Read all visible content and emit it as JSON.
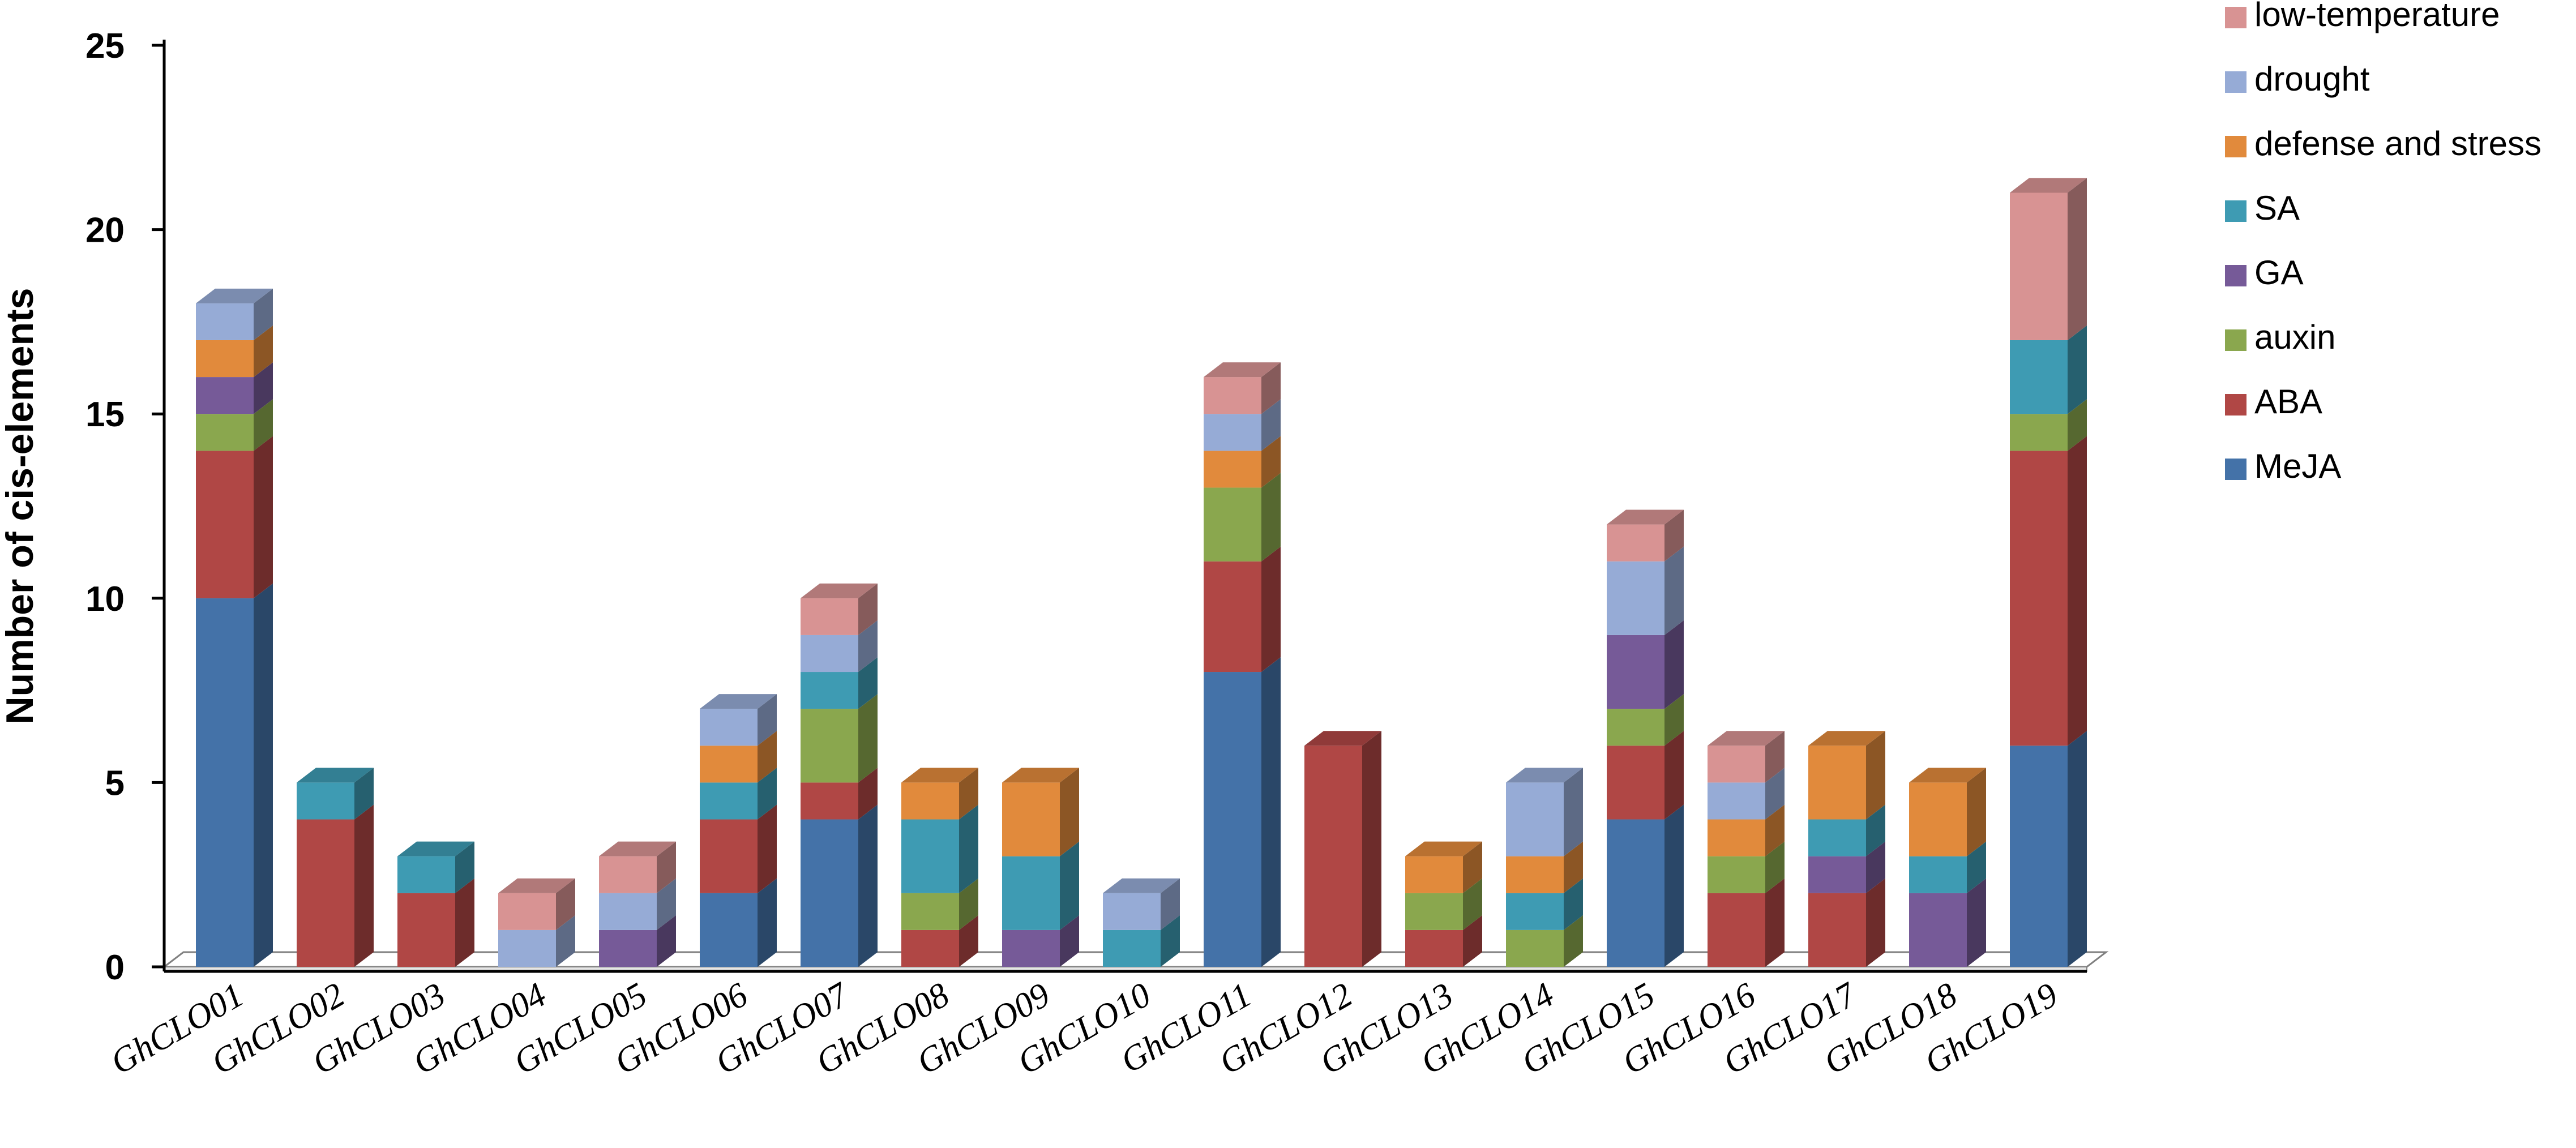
{
  "chart_data": {
    "type": "bar",
    "stacked": true,
    "three_d": true,
    "ylabel": "Number of cis-elements",
    "xlabel": "",
    "ylim": [
      0,
      25
    ],
    "yticks": [
      "0",
      "5",
      "10",
      "15",
      "20",
      "25"
    ],
    "grid": false,
    "legend_position": "top-right",
    "categories": [
      "GhCLO01",
      "GhCLO02",
      "GhCLO03",
      "GhCLO04",
      "GhCLO05",
      "GhCLO06",
      "GhCLO07",
      "GhCLO08",
      "GhCLO09",
      "GhCLO10",
      "GhCLO11",
      "GhCLO12",
      "GhCLO13",
      "GhCLO14",
      "GhCLO15",
      "GhCLO16",
      "GhCLO17",
      "GhCLO18",
      "GhCLO19"
    ],
    "series": [
      {
        "name": "MeJA",
        "color": "#4472a8",
        "values": [
          10,
          0,
          0,
          0,
          0,
          2,
          4,
          0,
          0,
          0,
          8,
          0,
          0,
          0,
          4,
          0,
          0,
          0,
          6
        ]
      },
      {
        "name": "ABA",
        "color": "#b04745",
        "values": [
          4,
          4,
          2,
          0,
          0,
          2,
          1,
          1,
          0,
          0,
          3,
          6,
          1,
          0,
          2,
          2,
          2,
          0,
          8
        ]
      },
      {
        "name": "auxin",
        "color": "#8aa74e",
        "values": [
          1,
          0,
          0,
          0,
          0,
          0,
          2,
          1,
          0,
          0,
          2,
          0,
          1,
          1,
          1,
          1,
          0,
          0,
          1
        ]
      },
      {
        "name": "GA",
        "color": "#765a98",
        "values": [
          1,
          0,
          0,
          0,
          1,
          0,
          0,
          0,
          1,
          0,
          0,
          0,
          0,
          0,
          2,
          0,
          1,
          2,
          0
        ]
      },
      {
        "name": "SA",
        "color": "#3e9bb3",
        "values": [
          0,
          1,
          1,
          0,
          0,
          1,
          1,
          2,
          2,
          1,
          0,
          0,
          0,
          1,
          0,
          0,
          1,
          1,
          2
        ]
      },
      {
        "name": "defense and stress",
        "color": "#e18a3c",
        "values": [
          1,
          0,
          0,
          0,
          0,
          1,
          0,
          1,
          2,
          0,
          1,
          0,
          1,
          1,
          0,
          1,
          2,
          2,
          0
        ]
      },
      {
        "name": "drought",
        "color": "#96abd6",
        "values": [
          1,
          0,
          0,
          1,
          1,
          1,
          1,
          0,
          0,
          1,
          1,
          0,
          0,
          2,
          2,
          1,
          0,
          0,
          0
        ]
      },
      {
        "name": "low-temperature",
        "color": "#d89393",
        "values": [
          0,
          0,
          0,
          1,
          1,
          0,
          1,
          0,
          0,
          0,
          1,
          0,
          0,
          0,
          1,
          1,
          0,
          0,
          4
        ]
      }
    ]
  }
}
